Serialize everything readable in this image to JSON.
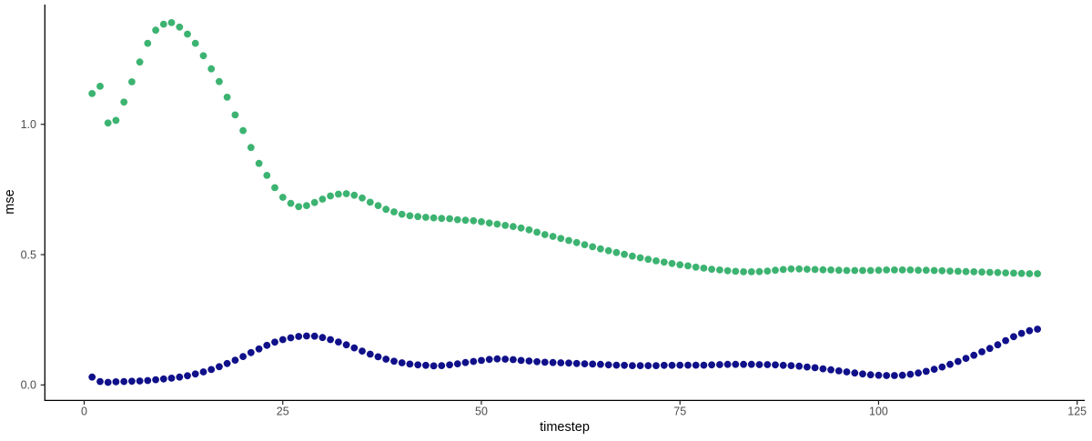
{
  "chart_data": {
    "type": "scatter",
    "title": "",
    "xlabel": "timestep",
    "ylabel": "mse",
    "xlim": [
      -4.95,
      125.95
    ],
    "ylim": [
      -0.0595,
      1.4595
    ],
    "x_ticks": [
      0,
      25,
      50,
      75,
      100,
      125
    ],
    "x_tick_labels": [
      "0",
      "25",
      "50",
      "75",
      "100",
      "125"
    ],
    "y_ticks": [
      0.0,
      0.5,
      1.0
    ],
    "y_tick_labels": [
      "0.0",
      "0.5",
      "1.0"
    ],
    "grid": false,
    "legend": "none",
    "background": "#ffffff",
    "point_radius": 3.9,
    "colors": {
      "green_series": "#3CB371",
      "navy_series": "#10108A",
      "axis_line": "#000000",
      "tick_text": "#4D4D4D",
      "axis_title": "#000000"
    },
    "series": [
      {
        "name": "green-series",
        "color": "#3CB371",
        "x": [
          1,
          2,
          3,
          4,
          5,
          6,
          7,
          8,
          9,
          10,
          11,
          12,
          13,
          14,
          15,
          16,
          17,
          18,
          19,
          20,
          21,
          22,
          23,
          24,
          25,
          26,
          27,
          28,
          29,
          30,
          31,
          32,
          33,
          34,
          35,
          36,
          37,
          38,
          39,
          40,
          41,
          42,
          43,
          44,
          45,
          46,
          47,
          48,
          49,
          50,
          51,
          52,
          53,
          54,
          55,
          56,
          57,
          58,
          59,
          60,
          61,
          62,
          63,
          64,
          65,
          66,
          67,
          68,
          69,
          70,
          71,
          72,
          73,
          74,
          75,
          76,
          77,
          78,
          79,
          80,
          81,
          82,
          83,
          84,
          85,
          86,
          87,
          88,
          89,
          90,
          91,
          92,
          93,
          94,
          95,
          96,
          97,
          98,
          99,
          100,
          101,
          102,
          103,
          104,
          105,
          106,
          107,
          108,
          109,
          110,
          111,
          112,
          113,
          114,
          115,
          116,
          117,
          118,
          119,
          120
        ],
        "y": [
          1.118,
          1.146,
          1.005,
          1.015,
          1.085,
          1.163,
          1.239,
          1.311,
          1.361,
          1.384,
          1.39,
          1.373,
          1.346,
          1.311,
          1.263,
          1.213,
          1.164,
          1.104,
          1.036,
          0.976,
          0.911,
          0.85,
          0.804,
          0.757,
          0.72,
          0.697,
          0.684,
          0.688,
          0.7,
          0.713,
          0.725,
          0.732,
          0.734,
          0.728,
          0.717,
          0.701,
          0.688,
          0.674,
          0.664,
          0.655,
          0.649,
          0.646,
          0.643,
          0.641,
          0.639,
          0.638,
          0.634,
          0.632,
          0.63,
          0.626,
          0.621,
          0.617,
          0.612,
          0.608,
          0.602,
          0.595,
          0.586,
          0.577,
          0.57,
          0.562,
          0.554,
          0.546,
          0.538,
          0.53,
          0.522,
          0.515,
          0.508,
          0.501,
          0.494,
          0.488,
          0.482,
          0.476,
          0.471,
          0.466,
          0.461,
          0.457,
          0.452,
          0.448,
          0.444,
          0.441,
          0.438,
          0.436,
          0.434,
          0.434,
          0.435,
          0.437,
          0.44,
          0.443,
          0.445,
          0.445,
          0.444,
          0.443,
          0.442,
          0.441,
          0.44,
          0.439,
          0.439,
          0.439,
          0.439,
          0.44,
          0.441,
          0.441,
          0.441,
          0.441,
          0.44,
          0.44,
          0.439,
          0.438,
          0.437,
          0.436,
          0.435,
          0.434,
          0.433,
          0.432,
          0.431,
          0.43,
          0.429,
          0.428,
          0.427,
          0.427
        ]
      },
      {
        "name": "navy-series",
        "color": "#10108A",
        "x": [
          1,
          2,
          3,
          4,
          5,
          6,
          7,
          8,
          9,
          10,
          11,
          12,
          13,
          14,
          15,
          16,
          17,
          18,
          19,
          20,
          21,
          22,
          23,
          24,
          25,
          26,
          27,
          28,
          29,
          30,
          31,
          32,
          33,
          34,
          35,
          36,
          37,
          38,
          39,
          40,
          41,
          42,
          43,
          44,
          45,
          46,
          47,
          48,
          49,
          50,
          51,
          52,
          53,
          54,
          55,
          56,
          57,
          58,
          59,
          60,
          61,
          62,
          63,
          64,
          65,
          66,
          67,
          68,
          69,
          70,
          71,
          72,
          73,
          74,
          75,
          76,
          77,
          78,
          79,
          80,
          81,
          82,
          83,
          84,
          85,
          86,
          87,
          88,
          89,
          90,
          91,
          92,
          93,
          94,
          95,
          96,
          97,
          98,
          99,
          100,
          101,
          102,
          103,
          104,
          105,
          106,
          107,
          108,
          109,
          110,
          111,
          112,
          113,
          114,
          115,
          116,
          117,
          118,
          119,
          120
        ],
        "y": [
          0.03,
          0.013,
          0.01,
          0.012,
          0.013,
          0.014,
          0.015,
          0.017,
          0.02,
          0.023,
          0.026,
          0.03,
          0.035,
          0.042,
          0.05,
          0.059,
          0.07,
          0.082,
          0.095,
          0.109,
          0.124,
          0.138,
          0.152,
          0.164,
          0.174,
          0.181,
          0.186,
          0.188,
          0.187,
          0.182,
          0.174,
          0.165,
          0.154,
          0.142,
          0.13,
          0.118,
          0.108,
          0.099,
          0.091,
          0.085,
          0.08,
          0.077,
          0.075,
          0.073,
          0.074,
          0.077,
          0.081,
          0.086,
          0.09,
          0.094,
          0.098,
          0.1,
          0.099,
          0.097,
          0.094,
          0.092,
          0.089,
          0.087,
          0.086,
          0.085,
          0.084,
          0.082,
          0.081,
          0.08,
          0.079,
          0.077,
          0.076,
          0.075,
          0.074,
          0.074,
          0.074,
          0.074,
          0.075,
          0.075,
          0.076,
          0.076,
          0.076,
          0.076,
          0.077,
          0.078,
          0.079,
          0.079,
          0.079,
          0.079,
          0.078,
          0.078,
          0.077,
          0.075,
          0.074,
          0.072,
          0.069,
          0.066,
          0.062,
          0.058,
          0.054,
          0.05,
          0.046,
          0.042,
          0.039,
          0.037,
          0.036,
          0.036,
          0.037,
          0.041,
          0.046,
          0.052,
          0.06,
          0.069,
          0.079,
          0.09,
          0.102,
          0.114,
          0.127,
          0.14,
          0.154,
          0.17,
          0.185,
          0.198,
          0.208,
          0.214
        ]
      }
    ]
  }
}
